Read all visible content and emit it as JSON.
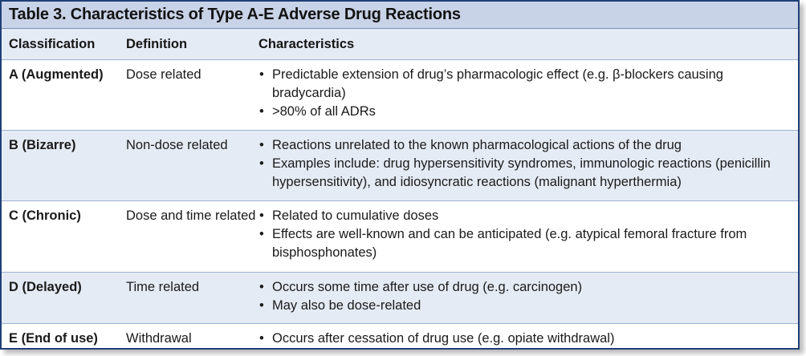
{
  "table": {
    "title": "Table 3. Characteristics of Type A-E Adverse Drug Reactions",
    "headers": {
      "classification": "Classification",
      "definition": "Definition",
      "characteristics": "Characteristics"
    },
    "rows": [
      {
        "classification": "A (Augmented)",
        "definition": "Dose related",
        "characteristics": [
          "Predictable extension of drug’s pharmacologic effect (e.g. β-blockers causing bradycardia)",
          ">80% of all ADRs"
        ]
      },
      {
        "classification": "B (Bizarre)",
        "definition": "Non-dose related",
        "characteristics": [
          "Reactions unrelated to the known pharmacological actions of the drug",
          "Examples include: drug hypersensitivity syndromes, immunologic reactions (penicillin hypersensitivity), and idiosyncratic reactions (malignant hyperthermia)"
        ]
      },
      {
        "classification": "C (Chronic)",
        "definition": "Dose and time related",
        "characteristics": [
          "Related to cumulative doses",
          "Effects are well-known and can be anticipated (e.g. atypical femoral fracture from bisphosphonates)"
        ]
      },
      {
        "classification": "D (Delayed)",
        "definition": "Time related",
        "characteristics": [
          "Occurs some time after use of drug (e.g. carcinogen)",
          "May also be dose-related"
        ]
      },
      {
        "classification": "E (End of use)",
        "definition": "Withdrawal",
        "characteristics": [
          "Occurs after cessation of drug use (e.g. opiate withdrawal)"
        ]
      }
    ]
  },
  "colors": {
    "title_bg": "#c9d3e7",
    "band_bg": "#e5ebf5",
    "border": "#1f3f77"
  }
}
